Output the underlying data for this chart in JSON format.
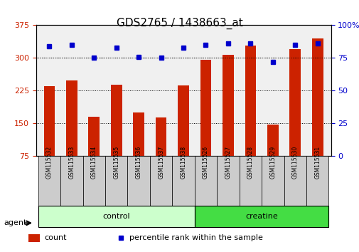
{
  "title": "GDS2765 / 1438663_at",
  "categories": [
    "GSM115532",
    "GSM115533",
    "GSM115534",
    "GSM115535",
    "GSM115536",
    "GSM115537",
    "GSM115538",
    "GSM115526",
    "GSM115527",
    "GSM115528",
    "GSM115529",
    "GSM115530",
    "GSM115531"
  ],
  "counts": [
    235,
    248,
    165,
    238,
    175,
    163,
    237,
    295,
    308,
    328,
    148,
    320,
    345
  ],
  "percentiles": [
    84,
    85,
    75,
    83,
    76,
    75,
    83,
    85,
    86,
    86,
    72,
    85,
    86
  ],
  "bar_color": "#cc2200",
  "dot_color": "#0000cc",
  "ylim_left": [
    75,
    375
  ],
  "ylim_right": [
    0,
    100
  ],
  "yticks_left": [
    75,
    150,
    225,
    300,
    375
  ],
  "yticks_right": [
    0,
    25,
    50,
    75,
    100
  ],
  "groups": [
    {
      "label": "control",
      "start": 0,
      "end": 7,
      "color": "#ccffcc"
    },
    {
      "label": "creatine",
      "start": 7,
      "end": 13,
      "color": "#44dd44"
    }
  ],
  "agent_label": "agent",
  "legend_count_label": "count",
  "legend_pct_label": "percentile rank within the sample",
  "grid_color": "#000000",
  "bg_color": "#ffffff",
  "plot_bg": "#ffffff",
  "bar_width": 0.5,
  "right_axis_color": "#0000cc",
  "left_axis_color": "#cc2200"
}
